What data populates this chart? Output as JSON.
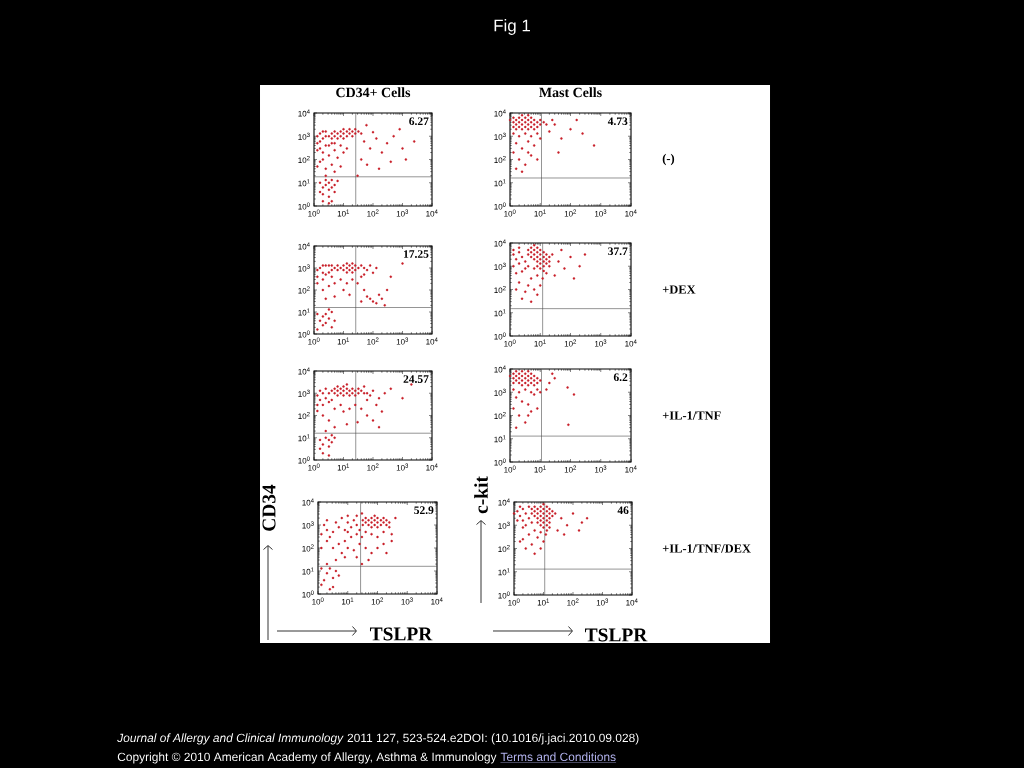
{
  "chart_data": [
    {
      "type": "other",
      "title": "Fig 1",
      "annotations": [
        "*Journal of Allergy and Clinical Immunology* 2011 127, 523-524.e2DOI: (10.1016/j.jaci.2010.09.028)",
        "Copyright © 2010 American Academy of Allergy, Asthma & Immunology",
        "Terms and Conditions"
      ]
    },
    {
      "type": "scatter",
      "title": "CD34+ Cells",
      "color": "#c81e28",
      "marker": "circle",
      "log": "xy",
      "xlim": [
        1,
        10000
      ],
      "ylim": [
        1,
        10000
      ],
      "xticks": [
        {
          "value": 1,
          "label": "10$^{0}$"
        },
        {
          "value": 10,
          "label": "10$^{1}$"
        },
        {
          "value": 100,
          "label": "10$^{2}$"
        },
        {
          "value": 1000,
          "label": "10$^{3}$"
        },
        {
          "value": 10000,
          "label": "10$^{4}$"
        }
      ],
      "yticks": [
        {
          "value": 1,
          "label": "10$^{0}$"
        },
        {
          "value": 10,
          "label": "10$^{1}$"
        },
        {
          "value": 100,
          "label": "10$^{2}$"
        },
        {
          "value": 1000,
          "label": "10$^{3}$"
        },
        {
          "value": 10000,
          "label": "10$^{4}$"
        }
      ],
      "ref_lines": [
        {
          "axis": "x",
          "value": 26,
          "color": "#4d4d4d"
        },
        {
          "axis": "y",
          "value": 18,
          "color": "#4d4d4d"
        }
      ],
      "annotations": [
        "6.27"
      ],
      "x": [
        3.2,
        5,
        5,
        8,
        8,
        13,
        13,
        20,
        20,
        32,
        4,
        4,
        6.3,
        6.3,
        10,
        10,
        16,
        16,
        25,
        25,
        40,
        10,
        1.3,
        1.6,
        2,
        1.3,
        1.6,
        2.5,
        3.2,
        1.3,
        2,
        4,
        5,
        1.6,
        2,
        2.5,
        2.5,
        2,
        3.2,
        5,
        8,
        1.6,
        4,
        6.3,
        10,
        13,
        2.5,
        5,
        1.3,
        8,
        2.5,
        3.2,
        4,
        3.2,
        2,
        2.5,
        4,
        5,
        2,
        3.2,
        1.6,
        5,
        2.5,
        4,
        6.3,
        1.6,
        3.2,
        2,
        50,
        80,
        130,
        200,
        40,
        63,
        300,
        500,
        1000,
        160,
        400,
        2500,
        800,
        60,
        100,
        30,
        1300
      ],
      "values": [
        1000,
        1000,
        1600,
        1000,
        1600,
        1000,
        1600,
        1600,
        1000,
        1600,
        800,
        1300,
        1300,
        800,
        1300,
        2000,
        1300,
        2000,
        2000,
        1300,
        1300,
        800,
        1000,
        600,
        800,
        500,
        300,
        400,
        400,
        250,
        200,
        500,
        500,
        1300,
        1600,
        1000,
        1600,
        100,
        150,
        250,
        400,
        80,
        60,
        120,
        200,
        300,
        40,
        30,
        50,
        50,
        8,
        10,
        6.3,
        5,
        6.3,
        13,
        13,
        8,
        3.2,
        2.5,
        10,
        4,
        20,
        1.6,
        12,
        4,
        1.3,
        1.6,
        600,
        300,
        800,
        200,
        100,
        60,
        500,
        1000,
        300,
        40,
        80,
        600,
        2000,
        3000,
        1500,
        20,
        100
      ]
    },
    {
      "type": "scatter",
      "title": "Mast Cells",
      "color": "#c81e28",
      "marker": "circle",
      "log": "xy",
      "xlim": [
        1,
        10000
      ],
      "ylim": [
        1,
        10000
      ],
      "xticks": [
        {
          "value": 1,
          "label": "10$^{0}$"
        },
        {
          "value": 10,
          "label": "10$^{1}$"
        },
        {
          "value": 100,
          "label": "10$^{2}$"
        },
        {
          "value": 1000,
          "label": "10$^{3}$"
        },
        {
          "value": 10000,
          "label": "10$^{4}$"
        }
      ],
      "yticks": [
        {
          "value": 1,
          "label": "10$^{0}$"
        },
        {
          "value": 10,
          "label": "10$^{1}$"
        },
        {
          "value": 100,
          "label": "10$^{2}$"
        },
        {
          "value": 1000,
          "label": "10$^{3}$"
        },
        {
          "value": 10000,
          "label": "10$^{4}$"
        }
      ],
      "ref_lines": [
        {
          "axis": "x",
          "value": 11,
          "color": "#4d4d4d"
        },
        {
          "axis": "y",
          "value": 16,
          "color": "#4d4d4d"
        }
      ],
      "annotations": [
        "4.73",
        "(-)"
      ],
      "x": [
        1.3,
        1.3,
        1.3,
        2,
        2,
        2,
        3.2,
        3.2,
        3.2,
        5,
        5,
        5,
        8,
        8,
        13,
        1,
        1.6,
        1.6,
        1.6,
        2.5,
        2.5,
        2.5,
        2.5,
        4,
        4,
        4,
        4,
        6.3,
        6.3,
        6.3,
        10,
        10,
        16,
        1.3,
        2,
        3.2,
        5,
        8,
        1.6,
        2.5,
        4,
        6.3,
        1.3,
        2,
        3.2,
        1.6,
        5,
        10,
        2.5,
        4,
        8,
        20,
        30,
        50,
        100,
        250,
        40,
        600,
        25,
        160
      ],
      "values": [
        2500,
        4000,
        6300,
        2500,
        4000,
        6300,
        2500,
        4000,
        6300,
        2500,
        4000,
        6300,
        2500,
        4000,
        4000,
        5000,
        2000,
        3200,
        5000,
        2000,
        3200,
        5000,
        8000,
        2000,
        3200,
        5000,
        8000,
        2000,
        3200,
        5000,
        3200,
        5000,
        3200,
        1300,
        1000,
        1300,
        1000,
        1300,
        500,
        300,
        600,
        400,
        200,
        100,
        60,
        40,
        150,
        800,
        30,
        200,
        100,
        1600,
        3200,
        800,
        2000,
        1300,
        200,
        400,
        5000,
        5000
      ]
    },
    {
      "type": "scatter",
      "color": "#c81e28",
      "marker": "circle",
      "log": "xy",
      "xlim": [
        1,
        10000
      ],
      "ylim": [
        1,
        10000
      ],
      "xticks": [
        {
          "value": 1,
          "label": "10$^{0}$"
        },
        {
          "value": 10,
          "label": "10$^{1}$"
        },
        {
          "value": 100,
          "label": "10$^{2}$"
        },
        {
          "value": 1000,
          "label": "10$^{3}$"
        },
        {
          "value": 10000,
          "label": "10$^{4}$"
        }
      ],
      "yticks": [
        {
          "value": 1,
          "label": "10$^{0}$"
        },
        {
          "value": 10,
          "label": "10$^{1}$"
        },
        {
          "value": 100,
          "label": "10$^{2}$"
        },
        {
          "value": 1000,
          "label": "10$^{3}$"
        },
        {
          "value": 10000,
          "label": "10$^{4}$"
        }
      ],
      "ref_lines": [
        {
          "axis": "x",
          "value": 26,
          "color": "#4d4d4d"
        },
        {
          "axis": "y",
          "value": 16,
          "color": "#4d4d4d"
        }
      ],
      "annotations": [
        "17.25"
      ],
      "x": [
        5,
        8,
        13,
        20,
        32,
        13,
        20,
        13,
        20,
        3.2,
        2.5,
        4,
        4,
        6.3,
        6.3,
        10,
        10,
        16,
        16,
        25,
        25,
        40,
        1.3,
        1.6,
        2,
        1.3,
        2,
        2,
        2.5,
        3.2,
        1.3,
        4,
        50,
        63,
        80,
        100,
        50,
        40,
        130,
        2,
        3.2,
        5,
        8,
        10,
        13,
        20,
        30,
        50,
        63,
        80,
        100,
        160,
        200,
        130,
        5,
        16,
        2.5,
        300,
        1000,
        400,
        40,
        250,
        2,
        2.5,
        3.2,
        4,
        1.6,
        3.2,
        2,
        1.3,
        5,
        2.5,
        1.3,
        4
      ],
      "values": [
        1000,
        1000,
        1000,
        1000,
        1000,
        1600,
        1600,
        630,
        630,
        630,
        1300,
        800,
        1300,
        800,
        1300,
        800,
        1300,
        800,
        1300,
        800,
        1300,
        1300,
        800,
        1000,
        600,
        400,
        300,
        1300,
        500,
        1300,
        200,
        400,
        1000,
        800,
        1300,
        600,
        500,
        400,
        1000,
        100,
        150,
        200,
        300,
        100,
        200,
        300,
        200,
        100,
        50,
        40,
        30,
        60,
        40,
        25,
        50,
        60,
        40,
        100,
        1600,
        400,
        30,
        20,
        6.3,
        8,
        5,
        10,
        4,
        13,
        2.5,
        8,
        4,
        3.2,
        1.6,
        2
      ]
    },
    {
      "type": "scatter",
      "color": "#c81e28",
      "marker": "circle",
      "log": "xy",
      "xlim": [
        1,
        10000
      ],
      "ylim": [
        1,
        10000
      ],
      "xticks": [
        {
          "value": 1,
          "label": "10$^{0}$"
        },
        {
          "value": 10,
          "label": "10$^{1}$"
        },
        {
          "value": 100,
          "label": "10$^{2}$"
        },
        {
          "value": 1000,
          "label": "10$^{3}$"
        },
        {
          "value": 10000,
          "label": "10$^{4}$"
        }
      ],
      "yticks": [
        {
          "value": 1,
          "label": "10$^{0}$"
        },
        {
          "value": 10,
          "label": "10$^{1}$"
        },
        {
          "value": 100,
          "label": "10$^{2}$"
        },
        {
          "value": 1000,
          "label": "10$^{3}$"
        },
        {
          "value": 10000,
          "label": "10$^{4}$"
        }
      ],
      "ref_lines": [
        {
          "axis": "x",
          "value": 12,
          "color": "#4d4d4d"
        },
        {
          "axis": "y",
          "value": 15,
          "color": "#4d4d4d"
        }
      ],
      "annotations": [
        "37.7",
        "+DEX"
      ],
      "x": [
        5,
        5,
        5,
        8,
        8,
        8,
        8,
        8,
        13,
        13,
        13,
        13,
        20,
        20,
        4,
        4,
        6.3,
        6.3,
        6.3,
        6.3,
        10,
        10,
        10,
        10,
        10,
        16,
        16,
        16,
        25,
        13,
        16,
        8,
        12,
        6.3,
        20,
        1.3,
        1.6,
        2,
        2.5,
        3.2,
        1.3,
        2,
        2.5,
        3.2,
        1.6,
        1.3,
        2,
        4,
        2,
        4,
        5,
        3.2,
        6.3,
        8,
        2.5,
        10,
        5,
        1.6,
        40,
        63,
        100,
        30,
        200,
        50,
        300,
        130
      ],
      "values": [
        2500,
        4000,
        6300,
        1000,
        1600,
        2500,
        4000,
        6300,
        1000,
        1600,
        2500,
        4000,
        1600,
        2500,
        3200,
        5000,
        2000,
        3200,
        5000,
        8000,
        800,
        1300,
        2000,
        3200,
        5000,
        1300,
        2000,
        3200,
        3200,
        630,
        500,
        400,
        300,
        800,
        1000,
        3200,
        2000,
        4000,
        2500,
        1600,
        1000,
        1300,
        600,
        800,
        500,
        5000,
        6300,
        1000,
        200,
        150,
        300,
        80,
        100,
        60,
        40,
        150,
        30,
        100,
        1600,
        800,
        2500,
        400,
        1000,
        5000,
        3200,
        300
      ]
    },
    {
      "type": "scatter",
      "color": "#c81e28",
      "marker": "circle",
      "log": "xy",
      "xlim": [
        1,
        10000
      ],
      "ylim": [
        1,
        10000
      ],
      "xticks": [
        {
          "value": 1,
          "label": "10$^{0}$"
        },
        {
          "value": 10,
          "label": "10$^{1}$"
        },
        {
          "value": 100,
          "label": "10$^{2}$"
        },
        {
          "value": 1000,
          "label": "10$^{3}$"
        },
        {
          "value": 10000,
          "label": "10$^{4}$"
        }
      ],
      "yticks": [
        {
          "value": 1,
          "label": "10$^{0}$"
        },
        {
          "value": 10,
          "label": "10$^{1}$"
        },
        {
          "value": 100,
          "label": "10$^{2}$"
        },
        {
          "value": 1000,
          "label": "10$^{3}$"
        },
        {
          "value": 10000,
          "label": "10$^{4}$"
        }
      ],
      "ref_lines": [
        {
          "axis": "x",
          "value": 26,
          "color": "#4d4d4d"
        },
        {
          "axis": "y",
          "value": 16,
          "color": "#4d4d4d"
        }
      ],
      "annotations": [
        "24.57"
      ],
      "x": [
        3.2,
        5,
        5,
        8,
        8,
        13,
        13,
        13,
        20,
        20,
        32,
        32,
        50,
        4,
        6.3,
        6.3,
        6.3,
        10,
        10,
        10,
        16,
        16,
        25,
        25,
        40,
        1.3,
        1.6,
        2,
        2.5,
        1.3,
        2,
        3.2,
        1.6,
        2.5,
        1.3,
        4,
        63,
        80,
        100,
        63,
        160,
        50,
        130,
        250,
        400,
        1000,
        2000,
        2,
        3.2,
        5,
        8,
        10,
        16,
        25,
        40,
        63,
        100,
        30,
        13,
        5,
        160,
        200,
        2.5,
        3.2,
        4,
        2,
        3.2,
        2.5,
        4,
        1.6,
        5,
        2,
        3.2,
        1.6
      ],
      "values": [
        1000,
        1000,
        1600,
        1000,
        1600,
        1000,
        1600,
        2500,
        1000,
        1600,
        1000,
        1600,
        1000,
        1300,
        800,
        1300,
        2000,
        800,
        1300,
        2000,
        800,
        1300,
        800,
        1300,
        1300,
        800,
        500,
        1000,
        600,
        300,
        300,
        400,
        1300,
        1600,
        160,
        500,
        1000,
        800,
        1300,
        500,
        600,
        2000,
        300,
        1000,
        1600,
        600,
        2500,
        100,
        60,
        200,
        300,
        150,
        200,
        300,
        200,
        100,
        60,
        50,
        40,
        30,
        30,
        150,
        10,
        8,
        13,
        5,
        4,
        20,
        6.3,
        8,
        10,
        2,
        1.6,
        3.2
      ]
    },
    {
      "type": "scatter",
      "color": "#c81e28",
      "marker": "circle",
      "log": "xy",
      "xlim": [
        1,
        10000
      ],
      "ylim": [
        1,
        10000
      ],
      "xticks": [
        {
          "value": 1,
          "label": "10$^{0}$"
        },
        {
          "value": 10,
          "label": "10$^{1}$"
        },
        {
          "value": 100,
          "label": "10$^{2}$"
        },
        {
          "value": 1000,
          "label": "10$^{3}$"
        },
        {
          "value": 10000,
          "label": "10$^{4}$"
        }
      ],
      "yticks": [
        {
          "value": 1,
          "label": "10$^{0}$"
        },
        {
          "value": 10,
          "label": "10$^{1}$"
        },
        {
          "value": 100,
          "label": "10$^{2}$"
        },
        {
          "value": 1000,
          "label": "10$^{3}$"
        },
        {
          "value": 10000,
          "label": "10$^{4}$"
        }
      ],
      "ref_lines": [
        {
          "axis": "x",
          "value": 11,
          "color": "#4d4d4d"
        },
        {
          "axis": "y",
          "value": 13,
          "color": "#4d4d4d"
        }
      ],
      "annotations": [
        "6.2",
        "+IL-1/TNF"
      ],
      "x": [
        1.3,
        1.3,
        1.3,
        2,
        2,
        2,
        3.2,
        3.2,
        3.2,
        5,
        5,
        5,
        8,
        8,
        1,
        1.6,
        1.6,
        1.6,
        2.5,
        2.5,
        2.5,
        2.5,
        4,
        4,
        4,
        4,
        6.3,
        6.3,
        6.3,
        10,
        1.3,
        2,
        3.2,
        5,
        8,
        1.6,
        2.5,
        4,
        6.3,
        1.3,
        2,
        3.2,
        5,
        8,
        1.6,
        10,
        4,
        20,
        30,
        80,
        16,
        130,
        85,
        25
      ],
      "values": [
        2500,
        4000,
        6300,
        2500,
        4000,
        6300,
        2500,
        4000,
        6300,
        2500,
        4000,
        6300,
        2500,
        4000,
        5000,
        3200,
        5000,
        8000,
        2000,
        3200,
        5000,
        8000,
        2000,
        3200,
        5000,
        8000,
        2000,
        3200,
        5000,
        3200,
        1300,
        1000,
        1300,
        1000,
        1300,
        600,
        400,
        300,
        800,
        200,
        100,
        50,
        150,
        200,
        30,
        1000,
        100,
        2500,
        4000,
        1600,
        1300,
        800,
        40,
        6300
      ]
    },
    {
      "type": "scatter",
      "xlabel": "TSLPR",
      "ylabel": "CD34",
      "color": "#c81e28",
      "marker": "circle",
      "log": "xy",
      "xlim": [
        1,
        10000
      ],
      "ylim": [
        1,
        10000
      ],
      "xticks": [
        {
          "value": 1,
          "label": "10$^{0}$"
        },
        {
          "value": 10,
          "label": "10$^{1}$"
        },
        {
          "value": 100,
          "label": "10$^{2}$"
        },
        {
          "value": 1000,
          "label": "10$^{3}$"
        },
        {
          "value": 10000,
          "label": "10$^{4}$"
        }
      ],
      "yticks": [
        {
          "value": 1,
          "label": "10$^{0}$"
        },
        {
          "value": 10,
          "label": "10$^{1}$"
        },
        {
          "value": 100,
          "label": "10$^{2}$"
        },
        {
          "value": 1000,
          "label": "10$^{3}$"
        },
        {
          "value": 10000,
          "label": "10$^{4}$"
        }
      ],
      "ref_lines": [
        {
          "axis": "x",
          "value": 27,
          "color": "#4d4d4d"
        },
        {
          "axis": "y",
          "value": 16,
          "color": "#4d4d4d"
        }
      ],
      "annotations": [
        "52.9"
      ],
      "x": [
        32,
        32,
        50,
        50,
        80,
        80,
        80,
        130,
        130,
        200,
        200,
        40,
        40,
        63,
        63,
        63,
        100,
        100,
        100,
        160,
        160,
        250,
        20,
        13,
        10,
        8,
        5,
        3.2,
        2,
        1.3,
        1.6,
        2.5,
        4,
        6.3,
        10,
        16,
        25,
        20,
        13,
        8,
        5,
        30,
        40,
        63,
        100,
        160,
        250,
        300,
        400,
        20,
        30,
        10,
        2,
        3.2,
        6.3,
        10,
        16,
        25,
        40,
        63,
        100,
        50,
        20,
        160,
        200,
        2,
        1.3,
        8,
        300,
        30,
        2,
        3.2,
        2.5,
        1.6,
        4,
        1.3,
        2,
        3.2,
        5,
        1.3,
        2.5,
        4
      ],
      "values": [
        1000,
        1600,
        1000,
        1600,
        1000,
        1600,
        2500,
        1000,
        1600,
        1600,
        1000,
        1300,
        2000,
        800,
        1300,
        2000,
        800,
        1300,
        2000,
        1300,
        2000,
        1300,
        1000,
        800,
        1300,
        600,
        800,
        500,
        600,
        400,
        1000,
        300,
        1300,
        2000,
        500,
        1600,
        600,
        400,
        300,
        200,
        150,
        300,
        500,
        400,
        300,
        500,
        800,
        400,
        2000,
        2500,
        3200,
        2500,
        1600,
        100,
        60,
        100,
        80,
        150,
        100,
        60,
        100,
        30,
        40,
        150,
        60,
        200,
        100,
        40,
        200,
        20,
        8,
        5,
        13,
        4,
        10,
        2.5,
        20,
        2,
        6.3,
        13,
        1.6,
        30
      ]
    },
    {
      "type": "scatter",
      "xlabel": "TSLPR",
      "ylabel": "c-kit",
      "color": "#c81e28",
      "marker": "circle",
      "log": "xy",
      "xlim": [
        1,
        10000
      ],
      "ylim": [
        1,
        10000
      ],
      "xticks": [
        {
          "value": 1,
          "label": "10$^{0}$"
        },
        {
          "value": 10,
          "label": "10$^{1}$"
        },
        {
          "value": 100,
          "label": "10$^{2}$"
        },
        {
          "value": 1000,
          "label": "10$^{3}$"
        },
        {
          "value": 10000,
          "label": "10$^{4}$"
        }
      ],
      "yticks": [
        {
          "value": 1,
          "label": "10$^{0}$"
        },
        {
          "value": 10,
          "label": "10$^{1}$"
        },
        {
          "value": 100,
          "label": "10$^{2}$"
        },
        {
          "value": 1000,
          "label": "10$^{3}$"
        },
        {
          "value": 10000,
          "label": "10$^{4}$"
        }
      ],
      "ref_lines": [
        {
          "axis": "x",
          "value": 11,
          "color": "#4d4d4d"
        },
        {
          "axis": "y",
          "value": 13,
          "color": "#4d4d4d"
        }
      ],
      "annotations": [
        "46",
        "+IL-1/TNF/DEX"
      ],
      "x": [
        5,
        5,
        5,
        8,
        8,
        8,
        8,
        8,
        13,
        13,
        13,
        13,
        13,
        20,
        20,
        4,
        4,
        6.3,
        6.3,
        6.3,
        6.3,
        10,
        10,
        10,
        10,
        10,
        16,
        16,
        16,
        16,
        25,
        1.3,
        1.6,
        2,
        2.5,
        3.2,
        2,
        1.3,
        3.2,
        2.5,
        1.6,
        4,
        2,
        1,
        10,
        13,
        8,
        16,
        5,
        3.2,
        6.3,
        10,
        4,
        2,
        2.5,
        8,
        5,
        12,
        1.6,
        40,
        63,
        100,
        30,
        200,
        50,
        300,
        160
      ],
      "values": [
        2500,
        4000,
        6300,
        1000,
        1600,
        2500,
        4000,
        6300,
        1000,
        1600,
        2500,
        4000,
        6300,
        2500,
        4000,
        3200,
        5000,
        1300,
        2000,
        3200,
        5000,
        1300,
        2000,
        3200,
        5000,
        8000,
        1300,
        2000,
        3200,
        5000,
        3200,
        4000,
        2500,
        5000,
        3200,
        2000,
        1600,
        1600,
        6300,
        1000,
        6300,
        1300,
        800,
        3200,
        800,
        600,
        500,
        800,
        600,
        400,
        300,
        200,
        150,
        250,
        100,
        100,
        60,
        400,
        200,
        2000,
        1000,
        3200,
        600,
        1300,
        400,
        2000,
        600
      ]
    }
  ]
}
